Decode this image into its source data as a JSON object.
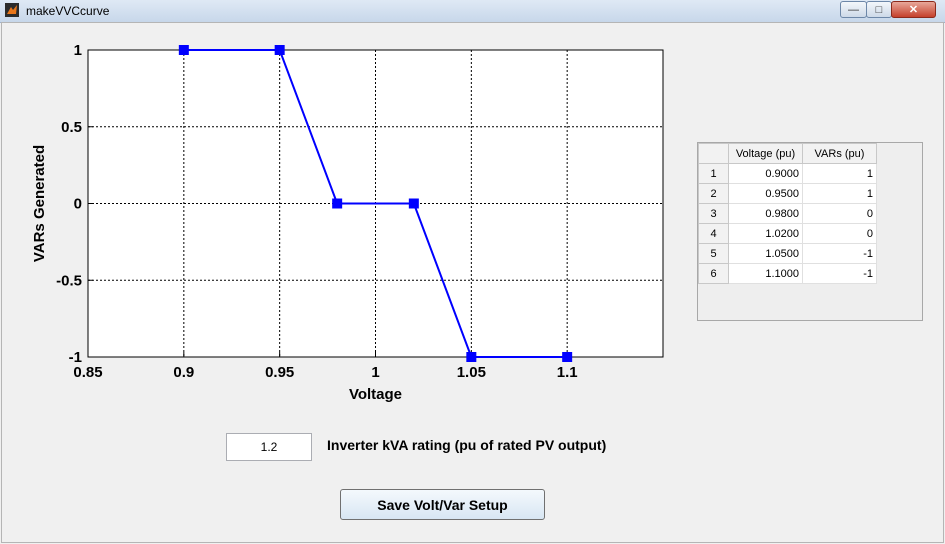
{
  "window": {
    "title": "makeVVCcurve",
    "minimize_glyph": "—",
    "maximize_glyph": "□",
    "close_glyph": "✕"
  },
  "chart_data": {
    "type": "line",
    "xlabel": "Voltage",
    "ylabel": "VARs Generated",
    "xlim": [
      0.85,
      1.15
    ],
    "ylim": [
      -1,
      1
    ],
    "xticks": [
      "0.85",
      "0.9",
      "0.95",
      "1",
      "1.05",
      "1.1"
    ],
    "yticks": [
      "1",
      "0.5",
      "0",
      "-0.5",
      "-1"
    ],
    "grid": true,
    "series": [
      {
        "x": [
          0.9,
          0.95,
          0.98,
          1.02,
          1.05,
          1.1
        ],
        "y": [
          1,
          1,
          0,
          0,
          -1,
          -1
        ],
        "color": "#0000ff",
        "marker": "square"
      }
    ]
  },
  "table": {
    "columns": [
      "Voltage (pu)",
      "VARs (pu)"
    ],
    "row_labels": [
      "1",
      "2",
      "3",
      "4",
      "5",
      "6"
    ],
    "rows": [
      [
        "0.9000",
        "1"
      ],
      [
        "0.9500",
        "1"
      ],
      [
        "0.9800",
        "0"
      ],
      [
        "1.0200",
        "0"
      ],
      [
        "1.0500",
        "-1"
      ],
      [
        "1.1000",
        "-1"
      ]
    ]
  },
  "kva": {
    "value": "1.2",
    "label": "Inverter kVA rating (pu of rated PV output)"
  },
  "save_button": {
    "label": "Save Volt/Var Setup"
  },
  "colors": {
    "line": "#0000ff",
    "grid": "#000000"
  }
}
